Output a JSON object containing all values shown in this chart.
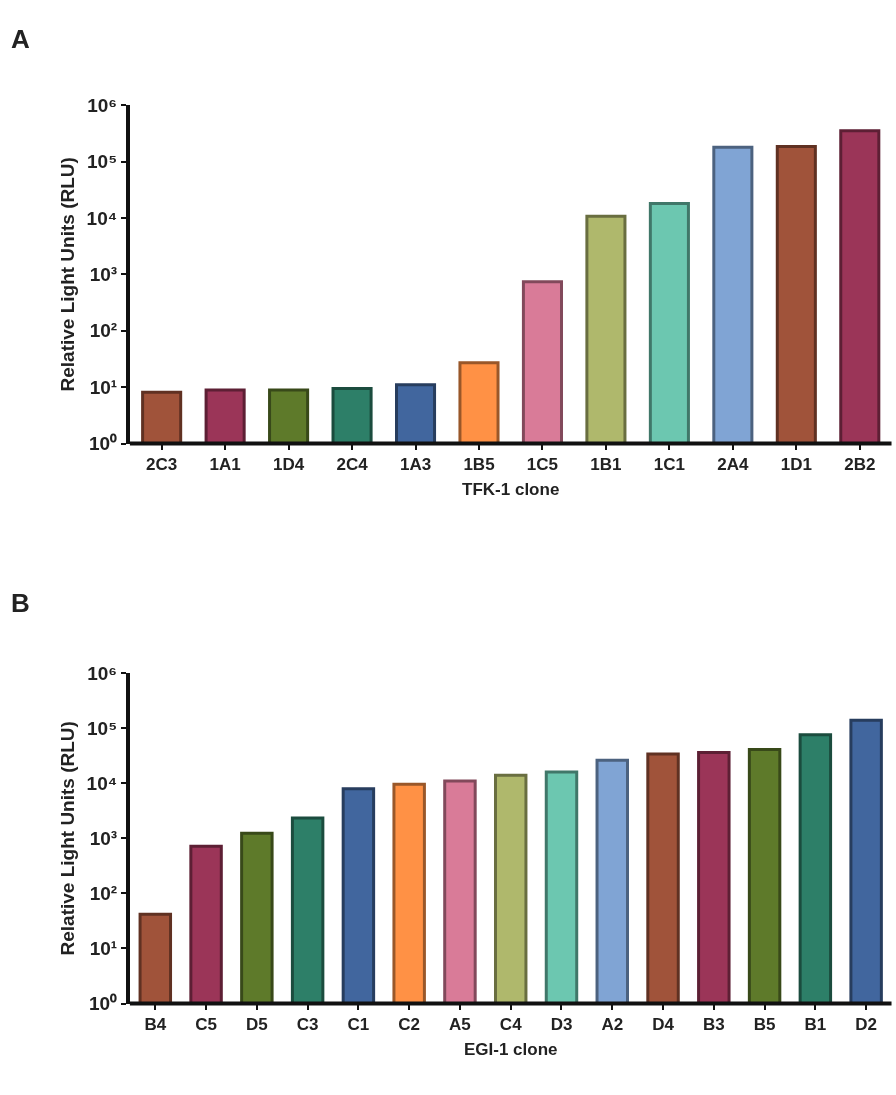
{
  "chart_data": [
    {
      "type": "bar",
      "title": "A",
      "xlabel": "TFK-1 clone",
      "ylabel": "Relative Light Units (RLU)",
      "log": true,
      "categories": [
        "2C3",
        "1A1",
        "1D4",
        "2C4",
        "1A3",
        "1B5",
        "1C5",
        "1B1",
        "1C1",
        "2A4",
        "1D1",
        "2B2"
      ],
      "values": [
        8.1,
        8.9,
        8.9,
        9.5,
        11,
        27,
        740,
        10700,
        18000,
        180000,
        185000,
        350000
      ],
      "colors": [
        "#a0533a",
        "#9b3558",
        "#5e7a2a",
        "#2d7f68",
        "#41669e",
        "#ff9145",
        "#d97b98",
        "#afb86c",
        "#6cc7b0",
        "#80a4d4",
        "#a0533a",
        "#9b3558"
      ],
      "ylim": [
        1,
        1000000
      ],
      "yticks": [
        {
          "value": 1,
          "label": "10⁰"
        },
        {
          "value": 10,
          "label": "10¹"
        },
        {
          "value": 100,
          "label": "10²"
        },
        {
          "value": 1000,
          "label": "10³"
        },
        {
          "value": 10000,
          "label": "10⁴"
        },
        {
          "value": 100000,
          "label": "10⁵"
        },
        {
          "value": 1000000,
          "label": "10⁶"
        }
      ]
    },
    {
      "type": "bar",
      "title": "B",
      "xlabel": "EGI-1 clone",
      "ylabel": "Relative Light Units (RLU)",
      "log": true,
      "categories": [
        "B4",
        "C5",
        "D5",
        "C3",
        "C1",
        "C2",
        "A5",
        "C4",
        "D3",
        "A2",
        "D4",
        "B3",
        "B5",
        "B1",
        "D2"
      ],
      "values": [
        42,
        720,
        1230,
        2340,
        7900,
        9600,
        11000,
        14000,
        16000,
        26000,
        34000,
        36000,
        41000,
        76000,
        139000
      ],
      "colors": [
        "#a0533a",
        "#9b3558",
        "#5e7a2a",
        "#2d7f68",
        "#41669e",
        "#ff9145",
        "#d97b98",
        "#afb86c",
        "#6cc7b0",
        "#80a4d4",
        "#a0533a",
        "#9b3558",
        "#5e7a2a",
        "#2d7f68",
        "#41669e"
      ],
      "ylim": [
        1,
        1000000
      ],
      "yticks": [
        {
          "value": 1,
          "label": "10⁰"
        },
        {
          "value": 10,
          "label": "10¹"
        },
        {
          "value": 100,
          "label": "10²"
        },
        {
          "value": 1000,
          "label": "10³"
        },
        {
          "value": 10000,
          "label": "10⁴"
        },
        {
          "value": 100000,
          "label": "10⁵"
        },
        {
          "value": 1000000,
          "label": "10⁶"
        }
      ]
    }
  ]
}
